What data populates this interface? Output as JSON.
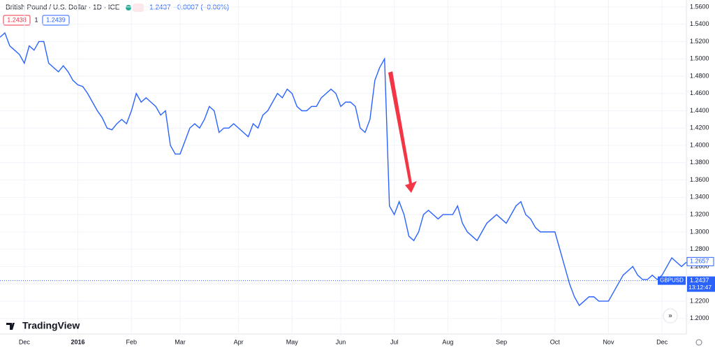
{
  "header": {
    "title": "British Pound / U.S. Dollar · 1D · ICE",
    "last": "1.2437",
    "change": "−0.0007 (−0.06%)",
    "bid": "1.2438",
    "spread": "1",
    "ask": "1.2439"
  },
  "brand": "TradingView",
  "chart_data": {
    "type": "line",
    "categories": [
      null,
      null,
      null,
      null,
      null,
      "Dec",
      null,
      null,
      null,
      null,
      null,
      null,
      null,
      null,
      null,
      null,
      "2016",
      null,
      null,
      null,
      null,
      null,
      null,
      null,
      null,
      null,
      null,
      "Feb",
      null,
      null,
      null,
      null,
      null,
      null,
      null,
      null,
      null,
      "Mar",
      null,
      null,
      null,
      null,
      null,
      null,
      null,
      null,
      null,
      null,
      null,
      "Apr",
      null,
      null,
      null,
      null,
      null,
      null,
      null,
      null,
      null,
      null,
      "May",
      null,
      null,
      null,
      null,
      null,
      null,
      null,
      null,
      null,
      "Jun",
      null,
      null,
      null,
      null,
      null,
      null,
      null,
      null,
      null,
      null,
      "Jul",
      null,
      null,
      null,
      null,
      null,
      null,
      null,
      null,
      null,
      null,
      "Aug",
      null,
      null,
      null,
      null,
      null,
      null,
      null,
      null,
      null,
      null,
      "Sep",
      null,
      null,
      null,
      null,
      null,
      null,
      null,
      null,
      null,
      null,
      "Oct",
      null,
      null,
      null,
      null,
      null,
      null,
      null,
      null,
      null,
      null,
      "Nov",
      null,
      null,
      null,
      null,
      null,
      null,
      null,
      null,
      null,
      null,
      "Dec",
      null,
      null,
      null,
      null,
      null
    ],
    "series": [
      {
        "name": "GBPUSD",
        "color": "#2962ff",
        "values": [
          1.525,
          1.53,
          1.515,
          1.51,
          1.505,
          1.495,
          1.515,
          1.51,
          1.52,
          1.52,
          1.495,
          1.49,
          1.485,
          1.492,
          1.485,
          1.475,
          1.47,
          1.468,
          1.46,
          1.45,
          1.44,
          1.432,
          1.42,
          1.418,
          1.425,
          1.43,
          1.425,
          1.44,
          1.46,
          1.45,
          1.455,
          1.45,
          1.445,
          1.435,
          1.44,
          1.4,
          1.39,
          1.39,
          1.405,
          1.42,
          1.425,
          1.42,
          1.43,
          1.445,
          1.44,
          1.415,
          1.42,
          1.42,
          1.425,
          1.42,
          1.415,
          1.41,
          1.425,
          1.42,
          1.435,
          1.44,
          1.45,
          1.46,
          1.455,
          1.465,
          1.46,
          1.445,
          1.44,
          1.44,
          1.445,
          1.445,
          1.455,
          1.46,
          1.465,
          1.46,
          1.445,
          1.45,
          1.45,
          1.445,
          1.42,
          1.415,
          1.43,
          1.475,
          1.49,
          1.5,
          1.33,
          1.32,
          1.335,
          1.32,
          1.295,
          1.29,
          1.3,
          1.32,
          1.325,
          1.32,
          1.315,
          1.32,
          1.32,
          1.32,
          1.33,
          1.31,
          1.3,
          1.295,
          1.29,
          1.3,
          1.31,
          1.315,
          1.32,
          1.315,
          1.31,
          1.32,
          1.33,
          1.335,
          1.32,
          1.315,
          1.305,
          1.3,
          1.3,
          1.3,
          1.3,
          1.28,
          1.26,
          1.24,
          1.225,
          1.215,
          1.22,
          1.225,
          1.225,
          1.22,
          1.22,
          1.22,
          1.23,
          1.24,
          1.25,
          1.255,
          1.26,
          1.25,
          1.245,
          1.245,
          1.25,
          1.245,
          1.25,
          1.26,
          1.27,
          1.265,
          1.26,
          1.265
        ]
      }
    ],
    "ylim": [
      1.182,
      1.568
    ],
    "yticks": [
      {
        "value": 1.56,
        "label": "1.5600"
      },
      {
        "value": 1.54,
        "label": "1.5400"
      },
      {
        "value": 1.52,
        "label": "1.5200"
      },
      {
        "value": 1.5,
        "label": "1.5000"
      },
      {
        "value": 1.48,
        "label": "1.4800"
      },
      {
        "value": 1.46,
        "label": "1.4600"
      },
      {
        "value": 1.44,
        "label": "1.4400"
      },
      {
        "value": 1.42,
        "label": "1.4200"
      },
      {
        "value": 1.4,
        "label": "1.4000"
      },
      {
        "value": 1.38,
        "label": "1.3800"
      },
      {
        "value": 1.36,
        "label": "1.3600"
      },
      {
        "value": 1.34,
        "label": "1.3400"
      },
      {
        "value": 1.32,
        "label": "1.3200"
      },
      {
        "value": 1.3,
        "label": "1.3000"
      },
      {
        "value": 1.28,
        "label": "1.2800"
      },
      {
        "value": 1.26,
        "label": "1.2600"
      },
      {
        "value": 1.24,
        "label": "1.2400"
      },
      {
        "value": 1.22,
        "label": "1.2200"
      },
      {
        "value": 1.2,
        "label": "1.2000"
      }
    ],
    "grid": true,
    "high_marker": 1.2657,
    "price_line": 1.2437,
    "clock": "13:12:47"
  }
}
